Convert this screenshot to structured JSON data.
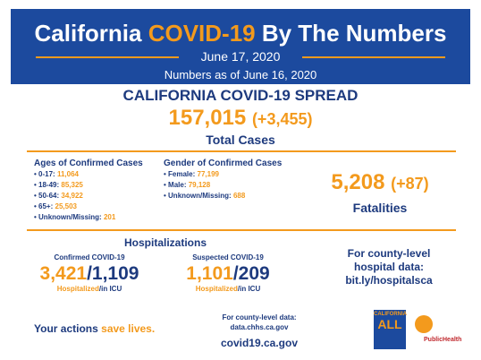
{
  "header": {
    "title_parts": [
      "California",
      "COVID-19",
      "By The Numbers"
    ],
    "date": "June 17, 2020",
    "as_of": "Numbers as of June 16, 2020"
  },
  "spread": {
    "title": "CALIFORNIA COVID-19 SPREAD",
    "total": "157,015",
    "change": "(+3,455)",
    "label": "Total Cases"
  },
  "ages": {
    "title": "Ages of Confirmed Cases",
    "items": [
      {
        "label": "0-17:",
        "value": "11,064"
      },
      {
        "label": "18-49:",
        "value": "85,325"
      },
      {
        "label": "50-64:",
        "value": "34,922"
      },
      {
        "label": "65+:",
        "value": "25,503"
      },
      {
        "label": "Unknown/Missing:",
        "value": "201"
      }
    ]
  },
  "gender": {
    "title": "Gender of Confirmed Cases",
    "items": [
      {
        "label": "Female:",
        "value": "77,199"
      },
      {
        "label": "Male:",
        "value": "79,128"
      },
      {
        "label": "Unknown/Missing:",
        "value": "688"
      }
    ]
  },
  "fatalities": {
    "value": "5,208",
    "change": "(+87)",
    "label": "Fatalities"
  },
  "hospitalizations": {
    "title": "Hospitalizations",
    "confirmed": {
      "title": "Confirmed COVID-19",
      "hospitalized": "3,421",
      "separator": "/",
      "icu": "1,109",
      "label_a": "Hospitalized",
      "label_b": "/in ICU"
    },
    "suspected": {
      "title": "Suspected COVID-19",
      "hospitalized": "1,101",
      "separator": "/",
      "icu": "209",
      "label_a": "Hospitalized",
      "label_b": "/in ICU"
    },
    "county": [
      "For county-level",
      "hospital data:",
      "bit.ly/hospitalsca"
    ]
  },
  "footer": {
    "tagline": [
      "Your actions",
      "save lives."
    ],
    "county_data": [
      "For county-level data:",
      "data.chhs.ca.gov"
    ],
    "website": "covid19.ca.gov",
    "logo_left": [
      "CALIFORNIA",
      "ALL"
    ],
    "logo_right": "PublicHealth"
  }
}
